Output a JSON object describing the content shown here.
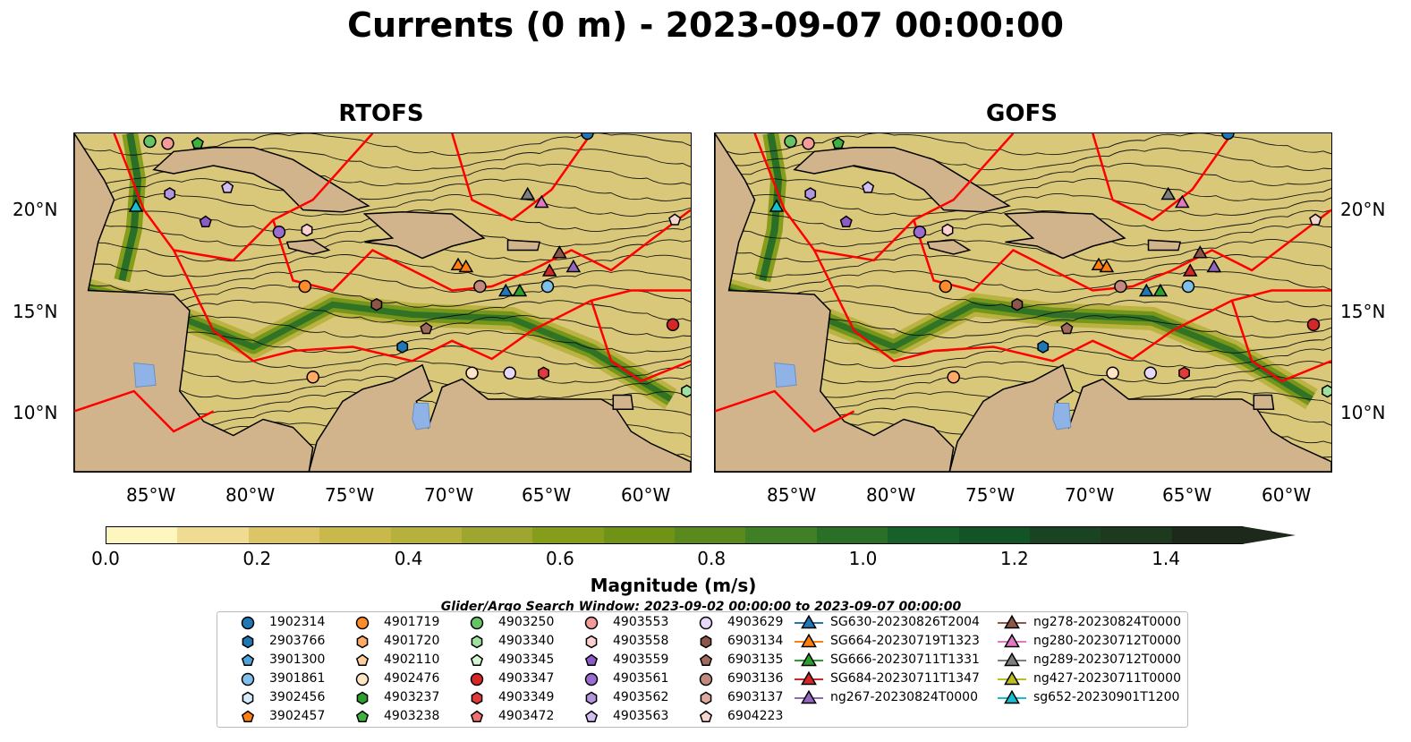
{
  "title": "Currents (0 m) - 2023-09-07 00:00:00",
  "panels": [
    {
      "title": "RTOFS"
    },
    {
      "title": "GOFS"
    }
  ],
  "axes": {
    "lon_labels": [
      "85°W",
      "80°W",
      "75°W",
      "70°W",
      "65°W",
      "60°W"
    ],
    "lat_labels": [
      "20°N",
      "15°N",
      "10°N"
    ]
  },
  "colorbar": {
    "label": "Magnitude (m/s)",
    "ticks": [
      "0.0",
      "0.2",
      "0.4",
      "0.6",
      "0.8",
      "1.0",
      "1.2",
      "1.4"
    ],
    "colors": [
      "#fdf6bf",
      "#efdb92",
      "#dcc566",
      "#c9b84a",
      "#b6b03c",
      "#9ea630",
      "#869d1c",
      "#6f9217",
      "#5a8a1d",
      "#3f7f25",
      "#2a6f26",
      "#17602a",
      "#125426",
      "#1a4321",
      "#1d3a1f",
      "#1d2a1b"
    ]
  },
  "search_window": "Glider/Argo Search Window: 2023-09-02 00:00:00 to 2023-09-07 00:00:00",
  "legend": [
    {
      "label": "1902314",
      "marker": "circle",
      "color": "#1f77b4"
    },
    {
      "label": "2903766",
      "marker": "hexagon",
      "color": "#1f77b4"
    },
    {
      "label": "3901300",
      "marker": "pentagon",
      "color": "#4ea3d9"
    },
    {
      "label": "3901861",
      "marker": "circle",
      "color": "#7fc0ea"
    },
    {
      "label": "3902456",
      "marker": "hexagon",
      "color": "#d7ecfa"
    },
    {
      "label": "3902457",
      "marker": "pentagon",
      "color": "#ff7f0e"
    },
    {
      "label": "4901719",
      "marker": "circle",
      "color": "#ff8c2a"
    },
    {
      "label": "4901720",
      "marker": "hexagon",
      "color": "#ffab66"
    },
    {
      "label": "4902110",
      "marker": "pentagon",
      "color": "#ffcf9e"
    },
    {
      "label": "4902476",
      "marker": "circle",
      "color": "#ffe5c4"
    },
    {
      "label": "4903237",
      "marker": "hexagon",
      "color": "#2ca02c"
    },
    {
      "label": "4903238",
      "marker": "pentagon",
      "color": "#3fb13f"
    },
    {
      "label": "4903250",
      "marker": "circle",
      "color": "#66c466"
    },
    {
      "label": "4903340",
      "marker": "hexagon",
      "color": "#9ee09e"
    },
    {
      "label": "4903345",
      "marker": "pentagon",
      "color": "#d4f5d4"
    },
    {
      "label": "4903347",
      "marker": "circle",
      "color": "#d62728"
    },
    {
      "label": "4903349",
      "marker": "hexagon",
      "color": "#e03a3a"
    },
    {
      "label": "4903472",
      "marker": "pentagon",
      "color": "#f07070"
    },
    {
      "label": "4903553",
      "marker": "circle",
      "color": "#f49a9a"
    },
    {
      "label": "4903558",
      "marker": "hexagon",
      "color": "#fcd0d0"
    },
    {
      "label": "4903559",
      "marker": "pentagon",
      "color": "#8c5cc4"
    },
    {
      "label": "4903561",
      "marker": "circle",
      "color": "#9a6ccf"
    },
    {
      "label": "4903562",
      "marker": "hexagon",
      "color": "#b396de"
    },
    {
      "label": "4903563",
      "marker": "pentagon",
      "color": "#d2bdf0"
    },
    {
      "label": "4903629",
      "marker": "circle",
      "color": "#e6d8f8"
    },
    {
      "label": "6903134",
      "marker": "hexagon",
      "color": "#8c564b"
    },
    {
      "label": "6903135",
      "marker": "pentagon",
      "color": "#a06a5e"
    },
    {
      "label": "6903136",
      "marker": "circle",
      "color": "#c08a7e"
    },
    {
      "label": "6903137",
      "marker": "hexagon",
      "color": "#dcaa9e"
    },
    {
      "label": "6904223",
      "marker": "pentagon",
      "color": "#f5d5cc"
    },
    {
      "label": "SG630-20230826T2004",
      "marker": "triangle",
      "color": "#1f77b4"
    },
    {
      "label": "SG664-20230719T1323",
      "marker": "triangle",
      "color": "#ff7f0e"
    },
    {
      "label": "SG666-20230711T1331",
      "marker": "triangle",
      "color": "#2ca02c"
    },
    {
      "label": "SG684-20230711T1347",
      "marker": "triangle",
      "color": "#d62728"
    },
    {
      "label": "ng267-20230824T0000",
      "marker": "triangle",
      "color": "#9467bd"
    },
    {
      "label": "ng278-20230824T0000",
      "marker": "triangle",
      "color": "#8c564b"
    },
    {
      "label": "ng280-20230712T0000",
      "marker": "triangle",
      "color": "#e377c2"
    },
    {
      "label": "ng289-20230712T0000",
      "marker": "triangle",
      "color": "#7f7f7f"
    },
    {
      "label": "ng427-20230711T0000",
      "marker": "triangle",
      "color": "#bcbd22"
    },
    {
      "label": "sg652-20230901T1200",
      "marker": "triangle",
      "color": "#17becf"
    }
  ]
}
